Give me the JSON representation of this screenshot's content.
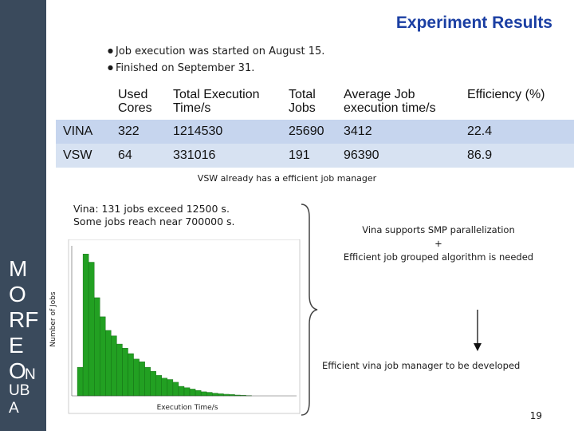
{
  "sidebar": {
    "letters": [
      "M",
      "O",
      "RF",
      "E",
      "O",
      "N",
      "UB",
      "A"
    ]
  },
  "slide": {
    "title": "Experiment Results",
    "bullets": [
      "Job execution was started on August 15.",
      "Finished on September 31."
    ],
    "page_number": "19"
  },
  "table": {
    "headers": [
      "",
      "Used Cores",
      "Total Execution Time/s",
      "Total Jobs",
      "Average Job execution time/s",
      "Efficiency (%)"
    ],
    "rows": [
      [
        "VINA",
        "322",
        "1214530",
        "25690",
        "3412",
        "22.4"
      ],
      [
        "VSW",
        "64",
        "331016",
        "191",
        "96390",
        "86.9"
      ]
    ]
  },
  "notes": {
    "vsw": "VSW already has a efficient job manager",
    "vina_line1": "Vina: 131 jobs exceed 12500 s.",
    "vina_line2": "Some jobs  reach near 700000 s.",
    "smp_line1": "Vina supports SMP parallelization",
    "smp_line2": "+",
    "smp_line3": "Efficient job grouped algorithm is needed",
    "dev": "Efficient vina job manager to be developed"
  },
  "chart_data": {
    "type": "bar",
    "xlabel": "Execution Time/s",
    "ylabel": "Number of Jobs",
    "ylim": [
      0,
      5500
    ],
    "xlim": [
      0,
      2000
    ],
    "x": [
      75,
      125,
      175,
      225,
      275,
      325,
      375,
      425,
      475,
      525,
      575,
      625,
      675,
      725,
      775,
      825,
      875,
      925,
      975,
      1025,
      1075,
      1125,
      1175,
      1225,
      1275,
      1325,
      1375,
      1425,
      1475,
      1525,
      1575
    ],
    "values": [
      1050,
      5200,
      4900,
      3600,
      2900,
      2400,
      2200,
      1900,
      1750,
      1550,
      1350,
      1250,
      1050,
      900,
      750,
      650,
      600,
      500,
      350,
      300,
      250,
      200,
      150,
      130,
      100,
      80,
      60,
      50,
      30,
      20,
      10
    ],
    "colors": {
      "bar": "#22a022",
      "bar_edge": "#116611"
    }
  },
  "colors": {
    "sidebar": "#3a4a5c",
    "title": "#1b3fa3",
    "row1": "#c6d5ee",
    "row2": "#d7e2f2"
  }
}
